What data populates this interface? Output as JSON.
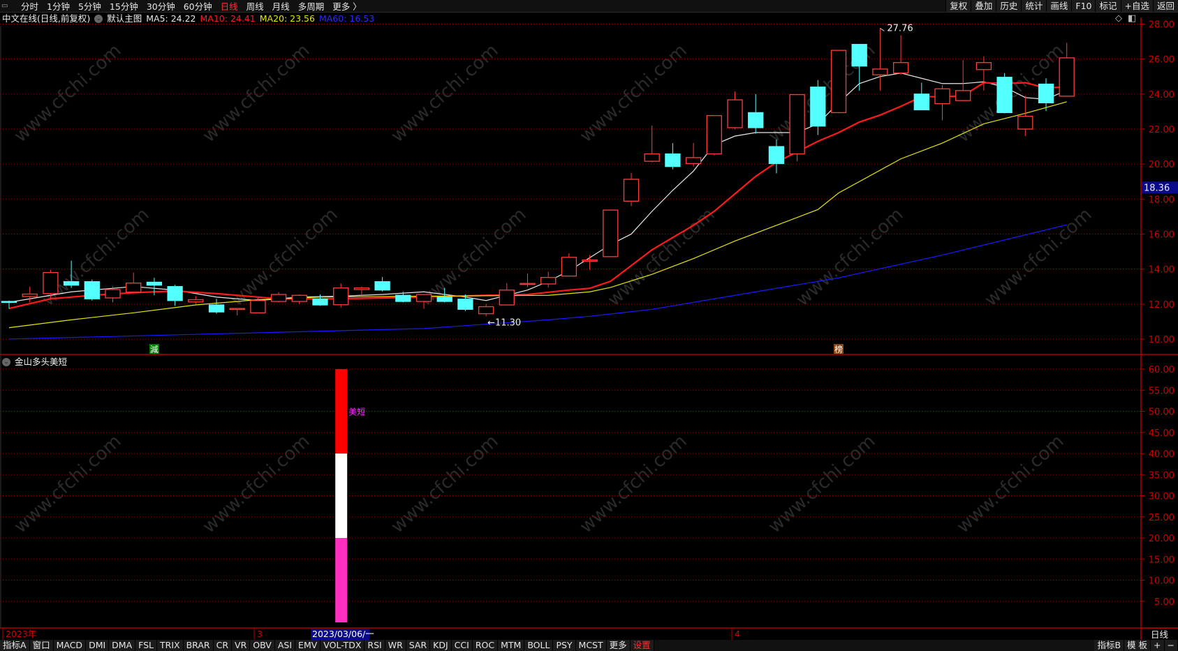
{
  "toolbar": {
    "periods": [
      "分时",
      "1分钟",
      "5分钟",
      "15分钟",
      "30分钟",
      "60分钟",
      "日线",
      "周线",
      "月线",
      "多周期",
      "更多 〉"
    ],
    "active_period": "日线",
    "tools": [
      "复权",
      "叠加",
      "历史",
      "统计",
      "画线",
      "F10",
      "标记",
      "+自选",
      "返回"
    ]
  },
  "legend": {
    "title": "中文在线(日线,前复权)",
    "main_chart": "默认主图",
    "ma5": "MA5: 24.22",
    "ma10": "MA10: 24.41",
    "ma20": "MA20: 23.56",
    "ma60": "MA60: 16.53"
  },
  "colors": {
    "up": "#ff3c3c",
    "down": "#54ffff",
    "ma5": "#e8e8e8",
    "ma10": "#ff1a1a",
    "ma20": "#e6e600",
    "ma60": "#1a1aff",
    "axis": "#b00000",
    "grid": "#8a0000",
    "current_price_bg": "#0a0a8c",
    "indicator_label": "#ff30ff"
  },
  "top_right_icons": [
    "diamond-icon",
    "panel-toggle-icon"
  ],
  "current_price": "18.36",
  "watermark": "www.cfchi.com",
  "chart_data": [
    {
      "type": "candlestick",
      "price_axis": {
        "ylim": [
          10,
          28
        ],
        "ticks": [
          "28.00",
          "26.00",
          "24.00",
          "22.00",
          "20.00",
          "18.00",
          "16.00",
          "14.00",
          "12.00",
          "10.00"
        ]
      },
      "grid": true,
      "candles": [
        [
          12.15,
          12.2,
          11.73,
          12.12
        ],
        [
          12.43,
          13.0,
          12.1,
          12.57
        ],
        [
          12.6,
          13.95,
          12.28,
          13.8
        ],
        [
          13.28,
          14.48,
          12.92,
          13.08
        ],
        [
          13.28,
          13.4,
          12.2,
          12.3
        ],
        [
          12.35,
          13.0,
          12.1,
          12.83
        ],
        [
          12.68,
          13.8,
          12.65,
          13.2
        ],
        [
          13.25,
          13.5,
          12.5,
          13.08
        ],
        [
          13.0,
          13.1,
          11.9,
          12.2
        ],
        [
          12.12,
          12.45,
          12.0,
          12.25
        ],
        [
          11.95,
          12.3,
          11.45,
          11.55
        ],
        [
          11.7,
          11.75,
          11.35,
          11.75
        ],
        [
          11.5,
          12.35,
          11.5,
          12.2
        ],
        [
          12.15,
          12.68,
          12.1,
          12.55
        ],
        [
          12.15,
          12.55,
          12.0,
          12.5
        ],
        [
          12.28,
          12.55,
          11.9,
          11.95
        ],
        [
          11.96,
          13.18,
          11.8,
          12.92
        ],
        [
          12.83,
          13.0,
          12.55,
          12.92
        ],
        [
          13.28,
          13.55,
          12.72,
          12.8
        ],
        [
          12.5,
          12.7,
          12.1,
          12.15
        ],
        [
          12.15,
          12.55,
          11.73,
          12.55
        ],
        [
          12.4,
          12.92,
          12.1,
          12.15
        ],
        [
          12.28,
          12.55,
          11.6,
          11.7
        ],
        [
          11.45,
          12.0,
          11.3,
          11.85
        ],
        [
          11.95,
          13.2,
          11.95,
          12.8
        ],
        [
          13.12,
          13.75,
          12.98,
          13.18
        ],
        [
          13.15,
          13.85,
          12.95,
          13.52
        ],
        [
          13.6,
          14.9,
          13.6,
          14.67
        ],
        [
          14.45,
          14.8,
          13.95,
          14.52
        ],
        [
          14.71,
          17.37,
          14.7,
          17.37
        ],
        [
          17.88,
          19.5,
          17.6,
          19.13
        ],
        [
          20.16,
          22.2,
          20.1,
          20.58
        ],
        [
          20.58,
          21.2,
          19.7,
          19.86
        ],
        [
          20.03,
          21.2,
          19.86,
          20.37
        ],
        [
          20.58,
          22.8,
          20.5,
          22.77
        ],
        [
          22.08,
          24.14,
          22.0,
          23.67
        ],
        [
          22.94,
          24.0,
          21.74,
          22.08
        ],
        [
          21.0,
          21.4,
          19.47,
          20.03
        ],
        [
          20.58,
          23.97,
          20.16,
          23.97
        ],
        [
          24.4,
          24.8,
          21.66,
          22.17
        ],
        [
          22.94,
          26.5,
          22.9,
          26.5
        ],
        [
          26.84,
          26.84,
          24.2,
          25.6
        ],
        [
          25.1,
          27.76,
          24.2,
          25.43
        ],
        [
          25.2,
          27.36,
          25.1,
          25.8
        ],
        [
          24.0,
          24.65,
          23.1,
          23.1
        ],
        [
          23.45,
          24.5,
          22.5,
          24.3
        ],
        [
          23.63,
          25.94,
          23.6,
          24.2
        ],
        [
          25.4,
          26.16,
          24.2,
          25.8
        ],
        [
          24.96,
          25.2,
          22.9,
          22.94
        ],
        [
          22.0,
          23.9,
          21.6,
          22.73
        ],
        [
          24.57,
          24.9,
          23.03,
          23.5
        ],
        [
          23.88,
          26.93,
          23.88,
          26.07
        ]
      ],
      "candle_format": [
        "open",
        "high",
        "low",
        "close"
      ],
      "series": [
        {
          "name": "MA5",
          "points": [
            [
              0,
              12.1
            ],
            [
              3,
              12.7
            ],
            [
              6,
              13.0
            ],
            [
              8,
              12.8
            ],
            [
              10,
              12.4
            ],
            [
              12,
              12.2
            ],
            [
              14,
              12.4
            ],
            [
              16,
              12.45
            ],
            [
              18,
              12.55
            ],
            [
              20,
              12.7
            ],
            [
              22,
              12.4
            ],
            [
              23,
              12.2
            ],
            [
              25,
              12.8
            ],
            [
              26,
              13.3
            ],
            [
              27,
              13.9
            ],
            [
              29,
              15.4
            ],
            [
              30,
              16.0
            ],
            [
              31,
              17.3
            ],
            [
              32,
              18.5
            ],
            [
              33,
              19.6
            ],
            [
              34,
              21.1
            ],
            [
              35,
              21.6
            ],
            [
              36,
              21.8
            ],
            [
              38,
              21.8
            ],
            [
              39,
              22.3
            ],
            [
              40,
              23.5
            ],
            [
              41,
              24.6
            ],
            [
              42,
              25.0
            ],
            [
              43,
              25.2
            ],
            [
              44,
              24.9
            ],
            [
              45,
              24.6
            ],
            [
              46,
              24.6
            ],
            [
              47,
              24.7
            ],
            [
              48,
              24.4
            ],
            [
              49,
              23.8
            ],
            [
              50,
              23.7
            ],
            [
              51,
              24.22
            ]
          ]
        },
        {
          "name": "MA10",
          "points": [
            [
              0,
              11.75
            ],
            [
              2,
              12.3
            ],
            [
              4,
              12.5
            ],
            [
              6,
              12.65
            ],
            [
              8,
              12.75
            ],
            [
              10,
              12.6
            ],
            [
              13,
              12.3
            ],
            [
              16,
              12.3
            ],
            [
              20,
              12.4
            ],
            [
              23,
              12.5
            ],
            [
              25,
              12.55
            ],
            [
              27,
              12.8
            ],
            [
              28,
              12.9
            ],
            [
              29,
              13.3
            ],
            [
              30,
              14.2
            ],
            [
              31,
              15.1
            ],
            [
              32,
              15.8
            ],
            [
              33,
              16.5
            ],
            [
              34,
              17.3
            ],
            [
              35,
              18.3
            ],
            [
              36,
              19.3
            ],
            [
              37,
              20.1
            ],
            [
              38,
              20.7
            ],
            [
              39,
              21.3
            ],
            [
              40,
              21.8
            ],
            [
              41,
              22.4
            ],
            [
              42,
              22.8
            ],
            [
              43,
              23.3
            ],
            [
              44,
              23.85
            ],
            [
              45,
              23.85
            ],
            [
              46,
              23.9
            ],
            [
              47,
              24.65
            ],
            [
              48,
              24.6
            ],
            [
              49,
              24.65
            ],
            [
              50,
              24.35
            ],
            [
              51,
              24.41
            ]
          ]
        },
        {
          "name": "MA20",
          "points": [
            [
              0,
              10.65
            ],
            [
              3,
              11.1
            ],
            [
              6,
              11.5
            ],
            [
              9,
              11.95
            ],
            [
              12,
              12.25
            ],
            [
              15,
              12.4
            ],
            [
              20,
              12.45
            ],
            [
              26,
              12.5
            ],
            [
              28,
              12.7
            ],
            [
              29,
              12.95
            ],
            [
              31,
              13.7
            ],
            [
              33,
              14.6
            ],
            [
              35,
              15.6
            ],
            [
              37,
              16.5
            ],
            [
              39,
              17.4
            ],
            [
              40,
              18.35
            ],
            [
              43,
              20.3
            ],
            [
              45,
              21.2
            ],
            [
              47,
              22.3
            ],
            [
              49,
              22.9
            ],
            [
              51,
              23.56
            ]
          ]
        },
        {
          "name": "MA60",
          "points": [
            [
              0,
              10.0
            ],
            [
              10,
              10.3
            ],
            [
              20,
              10.6
            ],
            [
              26,
              11.1
            ],
            [
              28,
              11.3
            ],
            [
              31,
              11.7
            ],
            [
              35,
              12.5
            ],
            [
              40,
              13.5
            ],
            [
              45,
              14.8
            ],
            [
              51,
              16.53
            ]
          ]
        }
      ],
      "annotations": [
        {
          "index": 42,
          "value": 27.76,
          "label": "27.76",
          "kind": "high"
        },
        {
          "index": 23,
          "value": 11.3,
          "label": "←11.30",
          "kind": "low"
        }
      ],
      "markers": [
        {
          "index": 7,
          "label": "減",
          "color": "#008000"
        },
        {
          "index": 40,
          "label": "榜",
          "color": "#8b4513"
        }
      ]
    },
    {
      "type": "bar",
      "title": "金山多头美短",
      "ylim": [
        0,
        60
      ],
      "ticks": [
        "60.00",
        "55.00",
        "50.00",
        "45.00",
        "40.00",
        "35.00",
        "30.00",
        "25.00",
        "20.00",
        "15.00",
        "10.00",
        "5.00"
      ],
      "grid": true,
      "bar_index": 16,
      "segments": [
        {
          "from": 0,
          "to": 20,
          "color": "#ff30c0"
        },
        {
          "from": 20,
          "to": 40,
          "color": "#ffffff"
        },
        {
          "from": 40,
          "to": 60,
          "color": "#ff0000"
        }
      ],
      "label": {
        "text": "美短",
        "value": 50
      }
    }
  ],
  "date_axis": {
    "year": "2023年",
    "march": "3",
    "april": "4",
    "cursor_date": "2023/03/06/一"
  },
  "bottom_right_period": "日线",
  "bottombar": {
    "items": [
      "指标A",
      "窗口",
      "MACD",
      "DMI",
      "DMA",
      "FSL",
      "TRIX",
      "BRAR",
      "CR",
      "VR",
      "OBV",
      "ASI",
      "EMV",
      "VOL-TDX",
      "RSI",
      "WR",
      "SAR",
      "KDJ",
      "CCI",
      "ROC",
      "MTM",
      "BOLL",
      "PSY",
      "MCST",
      "更多",
      "设置"
    ],
    "right_items": [
      "指标B",
      "模 板",
      "+",
      "−"
    ]
  }
}
